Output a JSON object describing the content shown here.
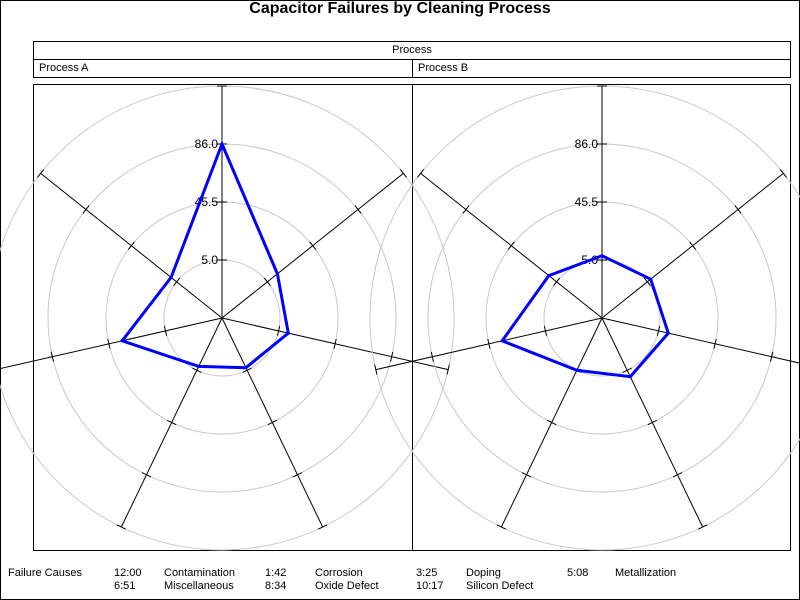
{
  "title": "Capacitor Failures by Cleaning Process",
  "panel_header": "Process",
  "chart_data": {
    "type": "radar",
    "title": "Capacitor Failures by Cleaning Process",
    "panel_variable": "Process",
    "radial_ticks": [
      "5.0",
      "45.5",
      "86.0"
    ],
    "radial_tick_values": [
      5.0,
      45.5,
      86.0
    ],
    "radial_min": -35.5,
    "radial_max": 86.0,
    "grid": true,
    "categories": [
      "Contamination",
      "Corrosion",
      "Doping",
      "Metallization",
      "Miscellaneous",
      "Oxide Defect",
      "Silicon Defect"
    ],
    "category_positions": [
      "12:00",
      "1:42",
      "3:25",
      "5:08",
      "6:51",
      "8:34",
      "10:17"
    ],
    "panels": [
      {
        "label": "Process A",
        "values": [
          86,
          14,
          12,
          3,
          2,
          36,
          10
        ]
      },
      {
        "label": "Process B",
        "values": [
          8,
          8,
          12,
          10,
          5,
          36,
          12
        ]
      }
    ]
  },
  "legend": {
    "label": "Failure Causes",
    "items": [
      {
        "time": "12:00",
        "name": "Contamination"
      },
      {
        "time": "1:42",
        "name": "Corrosion"
      },
      {
        "time": "3:25",
        "name": "Doping"
      },
      {
        "time": "5:08",
        "name": "Metallization"
      },
      {
        "time": "6:51",
        "name": "Miscellaneous"
      },
      {
        "time": "8:34",
        "name": "Oxide Defect"
      },
      {
        "time": "10:17",
        "name": "Silicon Defect"
      }
    ]
  },
  "colors": {
    "series": "#0000ff",
    "grid": "#c8c8c8",
    "axis": "#000000"
  }
}
